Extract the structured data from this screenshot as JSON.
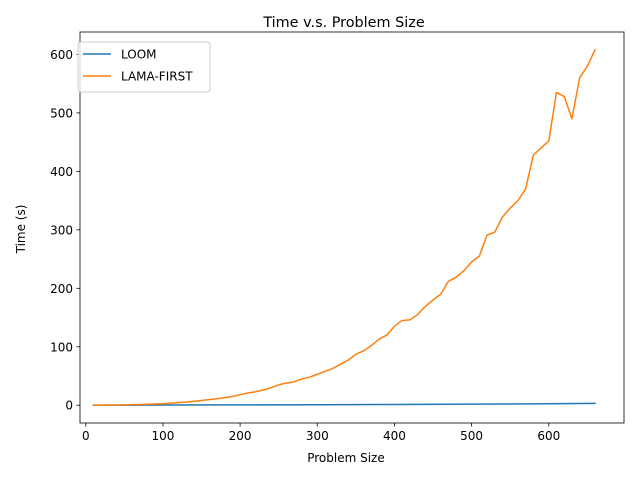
{
  "chart_data": {
    "type": "line",
    "title": "Time v.s. Problem Size",
    "xlabel": "Problem Size",
    "ylabel": "Time (s)",
    "xlim": [
      -7.5,
      697.5
    ],
    "ylim": [
      -30.4,
      638.4
    ],
    "xticks": [
      0,
      100,
      200,
      300,
      400,
      500,
      600
    ],
    "yticks": [
      0,
      100,
      200,
      300,
      400,
      500,
      600
    ],
    "grid": false,
    "legend_position": "upper left",
    "series": [
      {
        "name": "LOOM",
        "color": "#1f77b4",
        "x": [
          10,
          100,
          200,
          300,
          400,
          500,
          600,
          660
        ],
        "y": [
          0.1,
          0.3,
          0.6,
          0.9,
          1.3,
          1.8,
          2.5,
          3.2
        ]
      },
      {
        "name": "LAMA-FIRST",
        "color": "#ff7f0e",
        "x": [
          10,
          20,
          30,
          40,
          50,
          60,
          70,
          80,
          90,
          100,
          110,
          120,
          130,
          140,
          150,
          160,
          170,
          180,
          190,
          200,
          210,
          220,
          230,
          240,
          250,
          260,
          270,
          280,
          290,
          300,
          310,
          320,
          330,
          340,
          350,
          360,
          370,
          380,
          390,
          400,
          410,
          420,
          430,
          440,
          450,
          460,
          470,
          480,
          490,
          500,
          510,
          520,
          530,
          540,
          550,
          560,
          570,
          580,
          590,
          600,
          610,
          620,
          630,
          640,
          650,
          660
        ],
        "y": [
          0,
          0,
          0.2,
          0.4,
          0.6,
          1,
          1.3,
          1.7,
          2.2,
          2.6,
          3.5,
          4.5,
          5.5,
          6.5,
          8,
          9.5,
          11,
          13,
          15,
          18,
          21,
          23,
          26,
          30,
          35,
          38,
          40,
          45,
          48,
          53,
          58,
          63,
          70,
          77,
          87,
          93,
          102,
          113,
          120,
          135,
          145,
          146,
          155,
          169,
          180,
          190,
          212,
          219,
          230,
          245,
          255,
          291,
          296,
          322,
          337,
          350,
          370,
          428,
          440,
          452,
          535,
          528,
          490,
          560,
          580,
          608
        ]
      }
    ]
  }
}
